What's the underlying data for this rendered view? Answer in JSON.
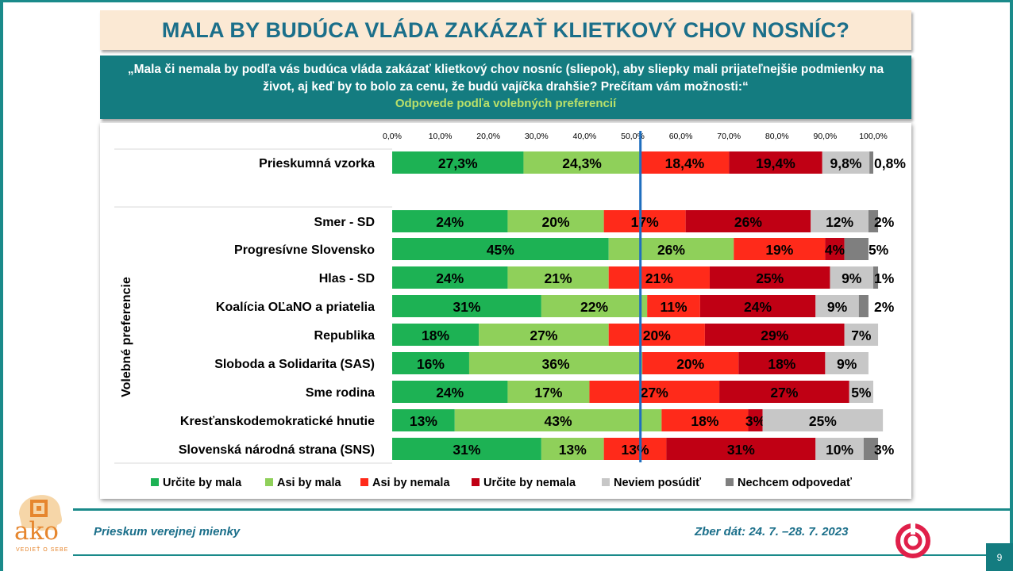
{
  "title": "MALA BY BUDÚCA VLÁDA ZAKÁZAŤ KLIETKOVÝ CHOV NOSNÍC?",
  "question": "„Mala či nemala by podľa vás budúca vláda zakázať klietkový chov nosníc (sliepok), aby sliepky mali prijateľnejšie podmienky na život, aj keď by to bolo za cenu, že budú vajíčka drahšie? Prečítam vám možnosti:“",
  "subtitle": "Odpovede podľa volebných preferencií",
  "footer": {
    "survey": "Prieskum verejnej mienky",
    "dates": "Zber dát: 24. 7. –28. 7. 2023",
    "page": "9",
    "logo_text": "ako",
    "logo_tagline": "VEDIEŤ O SEBE"
  },
  "colors": {
    "teal": "#147c80",
    "title_text": "#1b6f8a",
    "series": [
      "#1db254",
      "#8fd05a",
      "#ff2a1a",
      "#c00014",
      "#c7c7c7",
      "#7f7f7f"
    ],
    "reference_line": "#1f6fbf"
  },
  "chart_data": {
    "type": "bar",
    "orientation": "horizontal",
    "stacked": true,
    "xlim": [
      0,
      100
    ],
    "x_ticks": [
      "0,0%",
      "10,0%",
      "20,0%",
      "30,0%",
      "40,0%",
      "50,0%",
      "60,0%",
      "70,0%",
      "80,0%",
      "90,0%",
      "100,0%"
    ],
    "reference_line_x": 51.6,
    "y_axis_title": "Volebné preferencie",
    "legend_position": "bottom",
    "series_names": [
      "Určite by mala",
      "Asi by mala",
      "Asi by nemala",
      "Určite by nemala",
      "Neviem posúdiť",
      "Nechcem odpovedať"
    ],
    "rows": [
      {
        "label": "Prieskumná vzorka",
        "values": [
          27.3,
          24.3,
          18.4,
          19.4,
          9.8,
          0.8
        ],
        "labels": [
          "27,3%",
          "24,3%",
          "18,4%",
          "19,4%",
          "9,8%",
          "0,8%"
        ]
      },
      {
        "label": "Smer - SD",
        "values": [
          24,
          20,
          17,
          26,
          12,
          2
        ],
        "labels": [
          "24%",
          "20%",
          "17%",
          "26%",
          "12%",
          "2%"
        ]
      },
      {
        "label": "Progresívne Slovensko",
        "values": [
          45,
          26,
          19,
          4,
          0,
          5
        ],
        "labels": [
          "45%",
          "26%",
          "19%",
          "4%",
          "",
          "5%"
        ]
      },
      {
        "label": "Hlas - SD",
        "values": [
          24,
          21,
          21,
          25,
          9,
          1
        ],
        "labels": [
          "24%",
          "21%",
          "21%",
          "25%",
          "9%",
          "1%"
        ]
      },
      {
        "label": "Koalícia OĽaNO a priatelia",
        "values": [
          31,
          22,
          11,
          24,
          9,
          2
        ],
        "labels": [
          "31%",
          "22%",
          "11%",
          "24%",
          "9%",
          "2%"
        ]
      },
      {
        "label": "Republika",
        "values": [
          18,
          27,
          20,
          29,
          7,
          0
        ],
        "labels": [
          "18%",
          "27%",
          "20%",
          "29%",
          "7%",
          ""
        ]
      },
      {
        "label": "Sloboda a Solidarita (SAS)",
        "values": [
          16,
          36,
          20,
          18,
          9,
          0
        ],
        "labels": [
          "16%",
          "36%",
          "20%",
          "18%",
          "9%",
          ""
        ]
      },
      {
        "label": "Sme rodina",
        "values": [
          24,
          17,
          27,
          27,
          5,
          0
        ],
        "labels": [
          "24%",
          "17%",
          "27%",
          "27%",
          "5%",
          ""
        ]
      },
      {
        "label": "Kresťanskodemokratické hnutie",
        "values": [
          13,
          43,
          18,
          3,
          25,
          0
        ],
        "labels": [
          "13%",
          "43%",
          "18%",
          "3%",
          "25%",
          ""
        ]
      },
      {
        "label": "Slovenská národná strana (SNS)",
        "values": [
          31,
          13,
          13,
          31,
          10,
          3
        ],
        "labels": [
          "31%",
          "13%",
          "13%",
          "31%",
          "10%",
          "3%"
        ]
      }
    ]
  }
}
